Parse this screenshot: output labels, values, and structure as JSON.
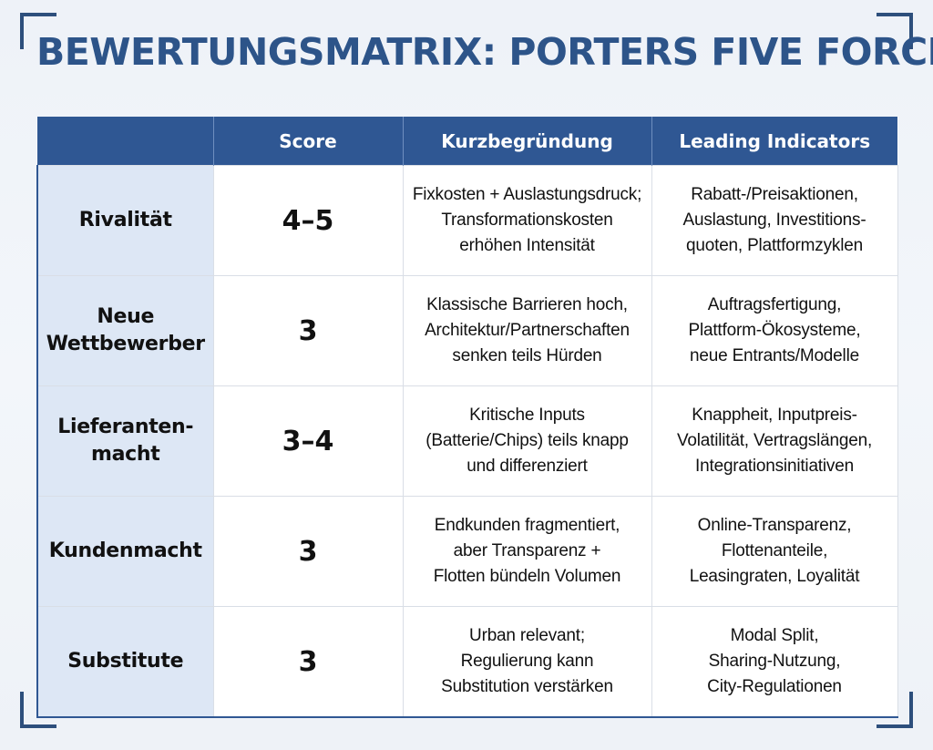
{
  "title": "BEWERTUNGSMATRIX: PORTERS FIVE FORCES",
  "headers": [
    "",
    "Score",
    "Kurzbegründung",
    "Leading Indicators"
  ],
  "rows": [
    {
      "force": [
        "Rivalität"
      ],
      "score": "4–5",
      "reason": [
        "Fixkosten + Auslastungsdruck;",
        "Transformationskosten",
        "erhöhen Intensität"
      ],
      "indicators": [
        "Rabatt-/Preisaktionen,",
        "Auslastung, Investitions-",
        "quoten, Plattformzyklen"
      ]
    },
    {
      "force": [
        "Neue",
        "Wettbewerber"
      ],
      "score": "3",
      "reason": [
        "Klassische Barrieren hoch,",
        "Architektur/Partnerschaften",
        "senken teils Hürden"
      ],
      "indicators": [
        "Auftragsfertigung,",
        "Plattform-Ökosysteme,",
        "neue Entrants/Modelle"
      ]
    },
    {
      "force": [
        "Lieferanten-",
        "macht"
      ],
      "score": "3–4",
      "reason": [
        "Kritische Inputs",
        "(Batterie/Chips) teils knapp",
        "und differenziert"
      ],
      "indicators": [
        "Knappheit, Inputpreis-",
        "Volatilität, Vertragslängen,",
        "Integrationsinitiativen"
      ]
    },
    {
      "force": [
        "Kundenmacht"
      ],
      "score": "3",
      "reason": [
        "Endkunden fragmentiert,",
        "aber Transparenz +",
        "Flotten bündeln Volumen"
      ],
      "indicators": [
        "Online-Transparenz,",
        "Flottenanteile,",
        "Leasingraten, Loyalität"
      ]
    },
    {
      "force": [
        "Substitute"
      ],
      "score": "3",
      "reason": [
        "Urban relevant;",
        "Regulierung kann",
        "Substitution verstärken"
      ],
      "indicators": [
        "Modal Split,",
        "Sharing-Nutzung,",
        "City-Regulationen"
      ]
    }
  ]
}
